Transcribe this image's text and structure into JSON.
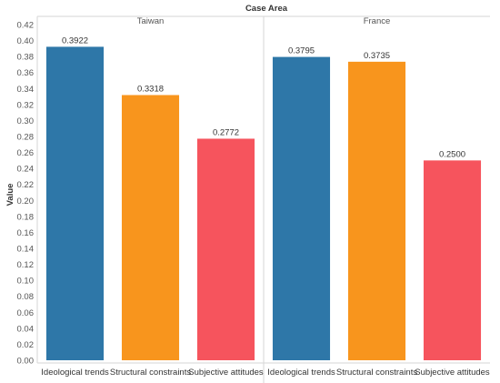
{
  "chart_data": {
    "type": "bar",
    "title": "Case Area",
    "ylabel": "Value",
    "xlabel": "",
    "ylim": [
      0,
      0.42
    ],
    "ytick_step": 0.02,
    "grid": false,
    "categories": [
      "Ideological trends",
      "Structural constraints",
      "Subjective attitudes"
    ],
    "category_colors": [
      "#2e77a8",
      "#f8951d",
      "#f6545d"
    ],
    "panels": [
      {
        "name": "Taiwan",
        "values": [
          0.3922,
          0.3318,
          0.2772
        ],
        "labels": [
          "0.3922",
          "0.3318",
          "0.2772"
        ]
      },
      {
        "name": "France",
        "values": [
          0.3795,
          0.3735,
          0.25
        ],
        "labels": [
          "0.3795",
          "0.3735",
          "0.2500"
        ]
      }
    ]
  }
}
